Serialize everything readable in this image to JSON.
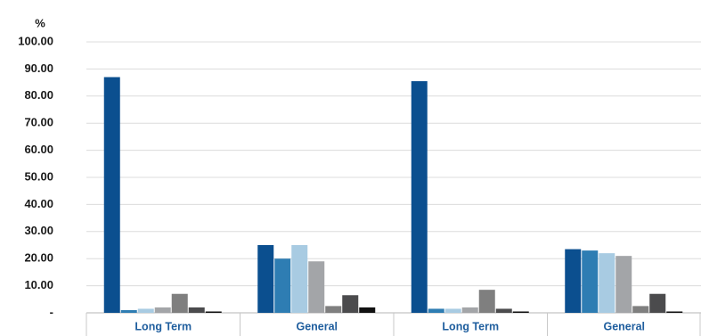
{
  "chart_data": {
    "type": "bar",
    "y_label": "%",
    "categories": [
      "Long Term",
      "General",
      "Long Term",
      "General"
    ],
    "series": [
      {
        "color": "#0b4f8f",
        "values": [
          87,
          25,
          85.5,
          23.5
        ]
      },
      {
        "color": "#2e7db3",
        "values": [
          1,
          20,
          1.5,
          23
        ]
      },
      {
        "color": "#a8cbe2",
        "values": [
          1.5,
          25,
          1.5,
          22
        ]
      },
      {
        "color": "#a3a5a8",
        "values": [
          2,
          19,
          2,
          21
        ]
      },
      {
        "color": "#7f7f7f",
        "values": [
          7,
          2.5,
          8.5,
          2.5
        ]
      },
      {
        "color": "#4b4b4d",
        "values": [
          2,
          6.5,
          1.5,
          7
        ]
      },
      {
        "color": "#111111",
        "values": [
          0.5,
          2,
          0.5,
          0.5
        ]
      }
    ],
    "ylim": [
      0,
      100
    ],
    "yticks": [
      {
        "value": 0,
        "label": "-"
      },
      {
        "value": 10,
        "label": "10.00"
      },
      {
        "value": 20,
        "label": "20.00"
      },
      {
        "value": 30,
        "label": "30.00"
      },
      {
        "value": 40,
        "label": "40.00"
      },
      {
        "value": 50,
        "label": "50.00"
      },
      {
        "value": 60,
        "label": "60.00"
      },
      {
        "value": 70,
        "label": "70.00"
      },
      {
        "value": 80,
        "label": "80.00"
      },
      {
        "value": 90,
        "label": "90.00"
      },
      {
        "value": 100,
        "label": "100.00"
      }
    ],
    "grid": true
  }
}
